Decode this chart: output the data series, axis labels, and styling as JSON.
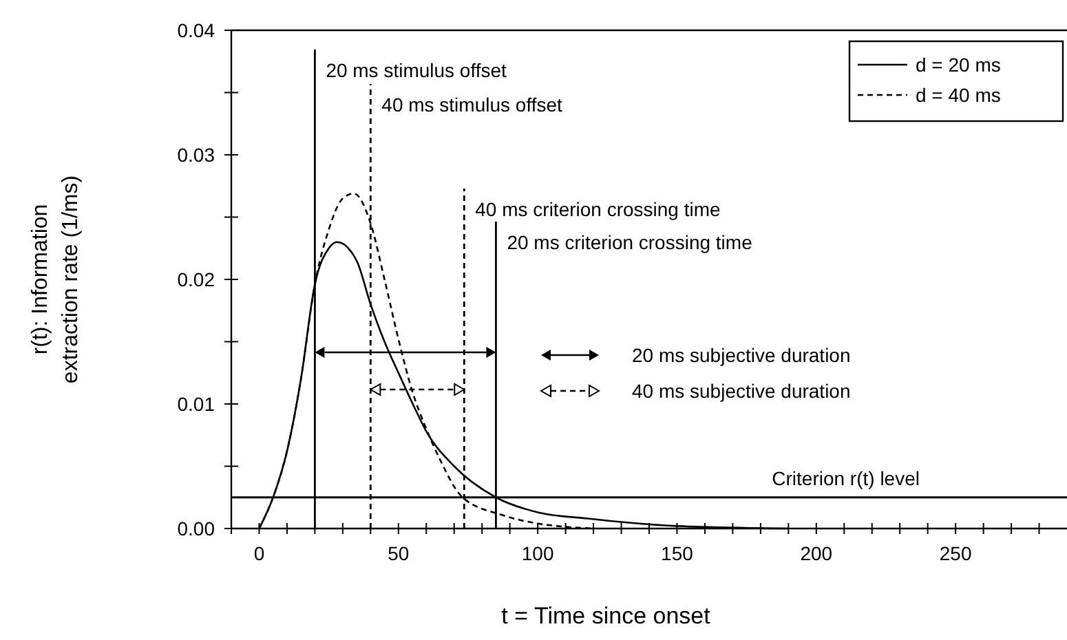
{
  "chart_data": {
    "type": "line",
    "xlabel": "t = Time since onset",
    "ylabel": "r(t): Information\nextraction rate (1/ms)",
    "xlim": [
      -10,
      290
    ],
    "ylim": [
      0,
      0.04
    ],
    "xticks": [
      {
        "value": -10,
        "label": null
      },
      0,
      {
        "value": 10,
        "label": null
      },
      {
        "value": 20,
        "label": null
      },
      {
        "value": 30,
        "label": null
      },
      {
        "value": 40,
        "label": null
      },
      50,
      {
        "value": 60,
        "label": null
      },
      {
        "value": 70,
        "label": null
      },
      {
        "value": 80,
        "label": null
      },
      {
        "value": 90,
        "label": null
      },
      100,
      {
        "value": 110,
        "label": null
      },
      {
        "value": 120,
        "label": null
      },
      {
        "value": 130,
        "label": null
      },
      {
        "value": 140,
        "label": null
      },
      150,
      {
        "value": 160,
        "label": null
      },
      {
        "value": 170,
        "label": null
      },
      {
        "value": 180,
        "label": null
      },
      {
        "value": 190,
        "label": null
      },
      200,
      {
        "value": 210,
        "label": null
      },
      {
        "value": 220,
        "label": null
      },
      {
        "value": 230,
        "label": null
      },
      {
        "value": 240,
        "label": null
      },
      250,
      {
        "value": 260,
        "label": null
      },
      {
        "value": 270,
        "label": null
      },
      {
        "value": 280,
        "label": null
      }
    ],
    "yticks": [
      {
        "value": 0,
        "label": "0.00"
      },
      {
        "value": 0.005,
        "label": null
      },
      {
        "value": 0.01,
        "label": "0.01"
      },
      {
        "value": 0.015,
        "label": null
      },
      {
        "value": 0.02,
        "label": "0.02"
      },
      {
        "value": 0.025,
        "label": null
      },
      {
        "value": 0.03,
        "label": "0.03"
      },
      {
        "value": 0.035,
        "label": null
      },
      {
        "value": 0.04,
        "label": "0.04"
      }
    ],
    "legend": "top right",
    "series": [
      {
        "name": "d = 20 ms",
        "color": "#000000",
        "line_style": "solid",
        "x": [
          0,
          5,
          10,
          15,
          20,
          25,
          28,
          35,
          40,
          45,
          50,
          56,
          60,
          70,
          85,
          100,
          118,
          150,
          190
        ],
        "values": [
          0,
          0.0025,
          0.0062,
          0.012,
          0.0196,
          0.0225,
          0.023,
          0.0215,
          0.018,
          0.015,
          0.0125,
          0.0096,
          0.0078,
          0.005,
          0.0025,
          0.0013,
          0.0008,
          0.0002,
          0
        ]
      },
      {
        "name": "d = 40 ms",
        "color": "#000000",
        "line_style": "dashed",
        "x": [
          0,
          5,
          10,
          15,
          20,
          25,
          30,
          34,
          40,
          45,
          50,
          55,
          60,
          65,
          73,
          87,
          100,
          107,
          120
        ],
        "values": [
          0,
          0.0025,
          0.0062,
          0.012,
          0.0196,
          0.024,
          0.0265,
          0.0269,
          0.0245,
          0.02,
          0.0152,
          0.011,
          0.008,
          0.0055,
          0.0025,
          0.0011,
          0.0004,
          0.0002,
          0
        ]
      }
    ],
    "annotations": [
      "20 ms subjective duration",
      "40 ms subjective duration"
    ],
    "ref_lines": [
      {
        "axis": "x",
        "value": 20,
        "label": "20 ms stimulus offset",
        "line_style": "solid"
      },
      {
        "axis": "x",
        "value": 40,
        "label": "40 ms stimulus offset",
        "line_style": "dashed"
      },
      {
        "axis": "x",
        "value": 73.6,
        "label": "40 ms criterion crossing time",
        "line_style": "dashed"
      },
      {
        "axis": "x",
        "value": 85,
        "label": "20 ms criterion crossing time",
        "line_style": "solid"
      },
      {
        "axis": "y",
        "value": 0.0025,
        "label": "Criterion r(t) level",
        "line_style": "solid"
      }
    ]
  }
}
